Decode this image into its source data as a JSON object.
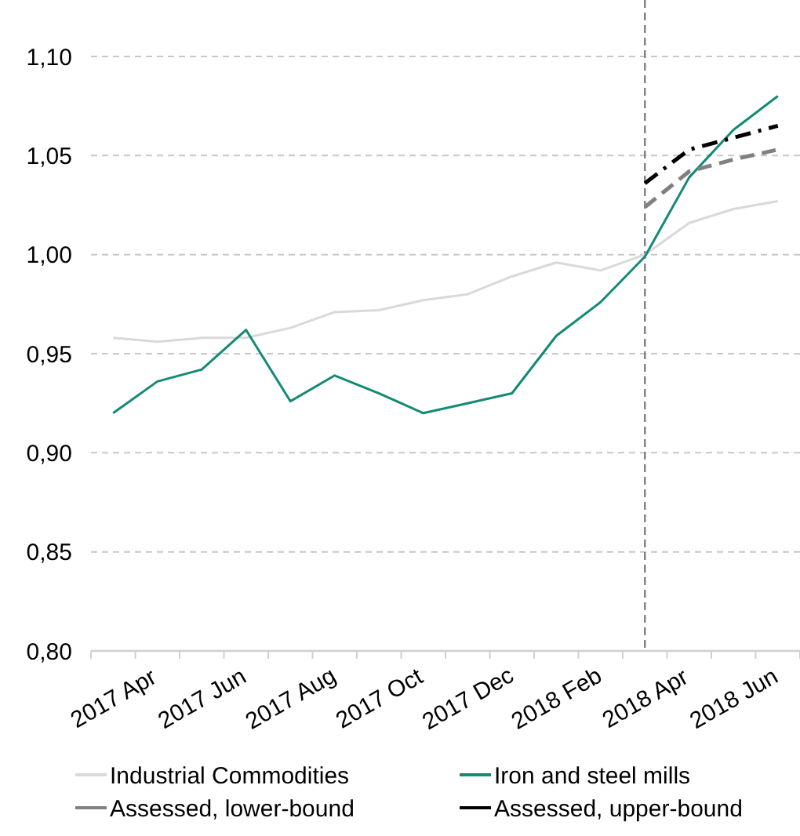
{
  "chart_data": {
    "type": "line",
    "categories": [
      "2017 Apr",
      null,
      "2017 Jun",
      null,
      "2017 Aug",
      null,
      "2017 Oct",
      null,
      "2017 Dec",
      null,
      "2018 Feb",
      null,
      "2018 Apr",
      null,
      "2018 Jun",
      null
    ],
    "series": [
      {
        "name": "Industrial Commodities",
        "color": "#d9d9d9",
        "line_style": "solid",
        "values": [
          0.958,
          0.956,
          0.958,
          0.958,
          0.963,
          0.971,
          0.972,
          0.977,
          0.98,
          0.989,
          0.996,
          0.992,
          1.0,
          1.016,
          1.023,
          1.027
        ]
      },
      {
        "name": "Iron and steel mills",
        "color": "#138a76",
        "line_style": "solid",
        "values": [
          0.92,
          0.936,
          0.942,
          0.962,
          0.926,
          0.939,
          0.93,
          0.92,
          0.925,
          0.93,
          0.959,
          0.976,
          0.999,
          1.039,
          1.063,
          1.08
        ]
      },
      {
        "name": "Assessed, lower-bound",
        "color": "#808080",
        "line_style": "dashed",
        "values": [
          null,
          null,
          null,
          null,
          null,
          null,
          null,
          null,
          null,
          null,
          null,
          null,
          1.024,
          1.042,
          1.048,
          1.053
        ]
      },
      {
        "name": "Assessed, upper-bound",
        "color": "#000000",
        "line_style": "dashdot",
        "values": [
          null,
          null,
          null,
          null,
          null,
          null,
          null,
          null,
          null,
          null,
          null,
          null,
          1.036,
          1.053,
          1.059,
          1.065
        ]
      }
    ],
    "ylim": [
      0.8,
      1.1
    ],
    "yticks": [
      {
        "value": 0.8,
        "label": "0,80"
      },
      {
        "value": 0.85,
        "label": "0,85"
      },
      {
        "value": 0.9,
        "label": "0,90"
      },
      {
        "value": 0.95,
        "label": "0,95"
      },
      {
        "value": 1.0,
        "label": "1,00"
      },
      {
        "value": 1.05,
        "label": "1,05"
      },
      {
        "value": 1.1,
        "label": "1,10"
      }
    ],
    "grid": "y",
    "legend": "bottom",
    "marker": "none",
    "ref_lines": [
      {
        "axis": "x",
        "value": "2018 Apr",
        "color": "#808080",
        "line_style": "dashed"
      }
    ]
  }
}
